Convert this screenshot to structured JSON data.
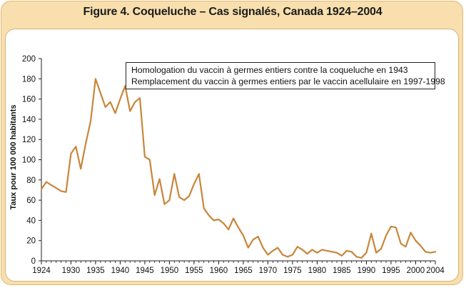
{
  "header": {
    "title": "Figure 4. Coqueluche – Cas signalés, Canada 1924–2004"
  },
  "annotations": [
    "Homologation du vaccin à germes entiers contre la coqueluche en 1943",
    "Remplacement du vaccin à germes entiers par le vaccin acellulaire en 1997-1998"
  ],
  "colors": {
    "line": "#c8863a",
    "frame": "#f8dfad"
  },
  "chart_data": {
    "type": "line",
    "title": "Figure 4. Coqueluche – Cas signalés, Canada 1924–2004",
    "xlabel": "",
    "ylabel": "Taux pour 100 000 habitants",
    "xlim": [
      1924,
      2004
    ],
    "ylim": [
      0,
      200
    ],
    "xticks": [
      "1924",
      "1930",
      "1935",
      "1940",
      "1945",
      "1950",
      "1955",
      "1960",
      "1965",
      "1970",
      "1975",
      "1980",
      "1985",
      "1990",
      "1995",
      "2000",
      "2004"
    ],
    "yticks": [
      "0",
      "20",
      "40",
      "60",
      "80",
      "100",
      "120",
      "140",
      "160",
      "180",
      "200"
    ],
    "grid": false,
    "legend": "none",
    "x": [
      1924,
      1925,
      1926,
      1927,
      1928,
      1929,
      1930,
      1931,
      1932,
      1933,
      1934,
      1935,
      1936,
      1937,
      1938,
      1939,
      1940,
      1941,
      1942,
      1943,
      1944,
      1945,
      1946,
      1947,
      1948,
      1949,
      1950,
      1951,
      1952,
      1953,
      1954,
      1955,
      1956,
      1957,
      1958,
      1959,
      1960,
      1961,
      1962,
      1963,
      1964,
      1965,
      1966,
      1967,
      1968,
      1969,
      1970,
      1971,
      1972,
      1973,
      1974,
      1975,
      1976,
      1977,
      1978,
      1979,
      1980,
      1981,
      1982,
      1983,
      1984,
      1985,
      1986,
      1987,
      1988,
      1989,
      1990,
      1991,
      1992,
      1993,
      1994,
      1995,
      1996,
      1997,
      1998,
      1999,
      2000,
      2001,
      2002,
      2003,
      2004
    ],
    "series": [
      {
        "values": [
          71,
          78,
          75,
          72,
          69,
          68,
          106,
          113,
          91,
          116,
          138,
          180,
          166,
          152,
          157,
          146,
          160,
          173,
          148,
          157,
          161,
          103,
          100,
          65,
          81,
          56,
          60,
          86,
          63,
          60,
          64,
          76,
          86,
          52,
          45,
          40,
          41,
          37,
          31,
          42,
          33,
          25,
          13,
          21,
          24,
          13,
          6,
          10,
          13,
          6,
          4,
          6,
          14,
          11,
          7,
          11,
          8,
          11,
          10,
          9,
          8,
          5,
          10,
          9,
          4,
          3,
          8,
          27,
          8,
          12,
          25,
          34,
          33,
          17,
          14,
          28,
          20,
          15,
          9,
          8,
          9
        ]
      }
    ]
  }
}
